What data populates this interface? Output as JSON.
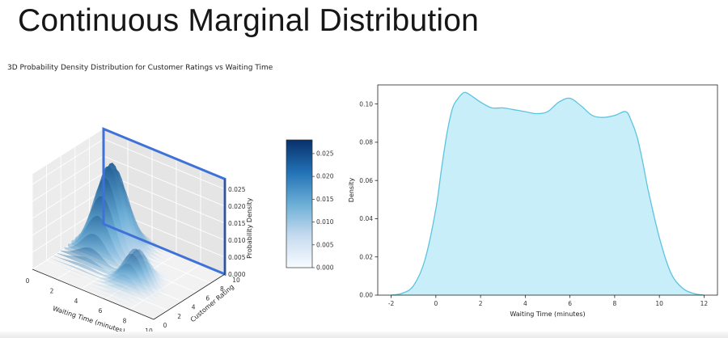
{
  "slide": {
    "title": "Continuous Marginal Distribution"
  },
  "chart_data": [
    {
      "type": "surface3d",
      "title": "3D Probability Density Distribution for Customer Ratings vs Waiting Time",
      "xlabel": "Waiting Time (minutes)",
      "ylabel": "Customer Rating",
      "zlabel": "Probability Density",
      "x_ticks": [
        "0",
        "2",
        "4",
        "6",
        "8",
        "10"
      ],
      "y_ticks": [
        "0",
        "2",
        "4",
        "6",
        "8",
        "10"
      ],
      "z_ticks": [
        "0.000",
        "0.005",
        "0.010",
        "0.015",
        "0.020",
        "0.025"
      ],
      "xlim": [
        0,
        10
      ],
      "ylim": [
        0,
        10
      ],
      "zlim": [
        0,
        0.028
      ],
      "colormap": "Blues",
      "colorbar": {
        "ticks": [
          "0.000",
          "0.005",
          "0.010",
          "0.015",
          "0.020",
          "0.025"
        ],
        "range": [
          0,
          0.028
        ]
      },
      "highlight_plane": "Waiting Time–Probability Density slice at Customer Rating = 10",
      "highlight_color": "#3f72d8",
      "grid": true
    },
    {
      "type": "area",
      "xlabel": "Waiting Time (minutes)",
      "ylabel": "Density",
      "xlim": [
        -2.6,
        12.6
      ],
      "ylim": [
        0,
        0.11
      ],
      "x_ticks": [
        -2,
        0,
        2,
        4,
        6,
        8,
        10,
        12
      ],
      "y_ticks": [
        0.0,
        0.02,
        0.04,
        0.06,
        0.08,
        0.1
      ],
      "y_tick_labels": [
        "0.00",
        "0.02",
        "0.04",
        "0.06",
        "0.08",
        "0.10"
      ],
      "fill_color": "#c8eefa",
      "line_color": "#5cc4de",
      "x": [
        -2.0,
        -1.5,
        -1.0,
        -0.5,
        0.0,
        0.25,
        0.5,
        0.75,
        1.0,
        1.25,
        1.5,
        2.0,
        2.5,
        3.0,
        3.5,
        4.0,
        4.5,
        5.0,
        5.5,
        6.0,
        6.5,
        7.0,
        7.5,
        8.0,
        8.5,
        8.75,
        9.0,
        9.25,
        9.5,
        10.0,
        10.5,
        11.0,
        11.5,
        12.0
      ],
      "y": [
        0.0,
        0.001,
        0.005,
        0.018,
        0.045,
        0.066,
        0.085,
        0.098,
        0.103,
        0.106,
        0.105,
        0.101,
        0.098,
        0.098,
        0.097,
        0.096,
        0.095,
        0.096,
        0.101,
        0.103,
        0.099,
        0.094,
        0.093,
        0.094,
        0.096,
        0.091,
        0.083,
        0.07,
        0.055,
        0.03,
        0.012,
        0.004,
        0.001,
        0.0
      ],
      "grid": false
    }
  ]
}
